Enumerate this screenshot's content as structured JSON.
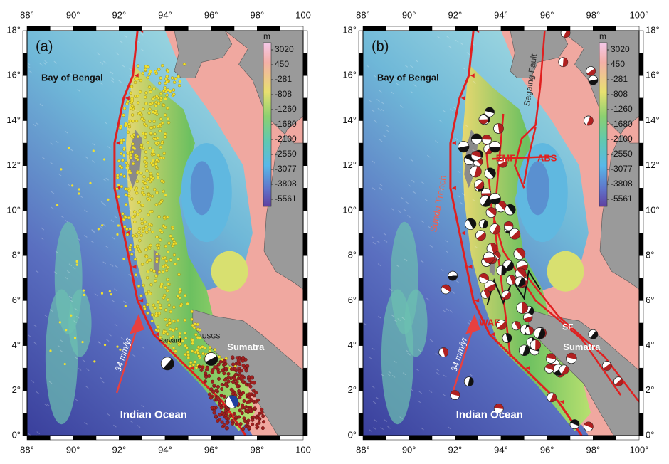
{
  "panels": [
    {
      "label": "(a)",
      "x_ticks_top": [
        "88°",
        "90°",
        "92°",
        "94°",
        "96°",
        "98°",
        "100"
      ],
      "x_ticks_bottom": [
        "88°",
        "90°",
        "92°",
        "94°",
        "96°",
        "98°",
        "100"
      ],
      "y_ticks_left": [
        "0°",
        "2°",
        "4°",
        "6°",
        "8°",
        "10°",
        "12°",
        "14°",
        "16°",
        "18°"
      ],
      "colorbar": {
        "unit": "m",
        "labels": [
          "3020",
          "450",
          "-281",
          "-808",
          "-1260",
          "-1680",
          "-2100",
          "-2550",
          "-3077",
          "-3808",
          "-5561"
        ]
      },
      "annotations": {
        "bay": "Bay of Bengal",
        "sumatra": "Sumatra",
        "ocean": "Indian Ocean",
        "rate": "34 mm/yr",
        "harvard": "Harvard",
        "usgs": "USGS"
      }
    },
    {
      "label": "(b)",
      "x_ticks_top": [
        "88°",
        "90°",
        "92°",
        "94°",
        "96°",
        "98°",
        "100°"
      ],
      "x_ticks_bottom": [
        "88°",
        "90°",
        "92°",
        "94°",
        "96°",
        "98°",
        "100°"
      ],
      "y_ticks_left": [
        "0°",
        "2°",
        "4°",
        "6°",
        "8°",
        "10°",
        "12°",
        "14°",
        "16°",
        "18°"
      ],
      "y_ticks_right": [
        "0°",
        "2°",
        "4°",
        "6°",
        "8°",
        "10°",
        "12°",
        "14°",
        "16°",
        "18°"
      ],
      "colorbar": {
        "unit": "m",
        "labels": [
          "3020",
          "450",
          "-281",
          "-808",
          "-1260",
          "-1680",
          "-2100",
          "-2550",
          "-3077",
          "-3808",
          "-5561"
        ]
      },
      "annotations": {
        "bay": "Bay of Bengal",
        "sumatra": "Sumatra",
        "ocean": "Indian Ocean",
        "rate": "34 mm/yr",
        "trench": "Sunda Trench",
        "sagaing": "Sagaing Fault",
        "emf": "EMF",
        "abs": "ABS",
        "waf": "WAF",
        "sf": "SF"
      }
    }
  ]
}
